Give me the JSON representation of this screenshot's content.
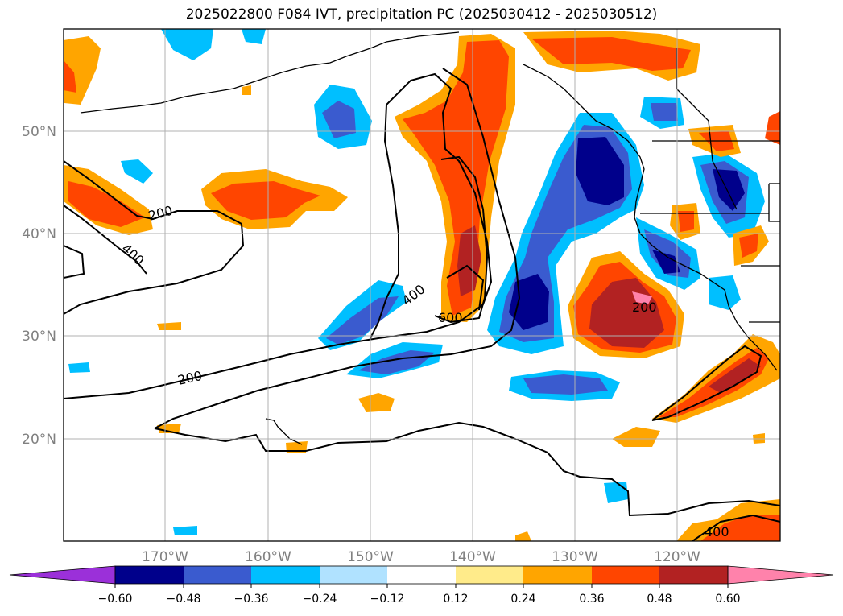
{
  "title": "2025022800 F084 IVT, precipitation PC (2025030412 - 2025030512)",
  "lat_labels": [
    "50°N",
    "40°N",
    "30°N",
    "20°N"
  ],
  "lon_labels": [
    "170°W",
    "160°W",
    "150°W",
    "140°W",
    "130°W",
    "120°W"
  ],
  "contour_labels": [
    "200",
    "400",
    "400",
    "600",
    "200",
    "200",
    "400"
  ],
  "colorbar": {
    "ticks": [
      "−0.60",
      "−0.48",
      "−0.36",
      "−0.24",
      "−0.12",
      "0.12",
      "0.24",
      "0.36",
      "0.48",
      "0.60"
    ],
    "colors": [
      "#9b30d9",
      "#00008b",
      "#3a5bcf",
      "#00bfff",
      "#b0e2ff",
      "#ffffff",
      "#ffeb8a",
      "#ffa500",
      "#ff4500",
      "#b22222",
      "#ff82ab"
    ]
  }
}
